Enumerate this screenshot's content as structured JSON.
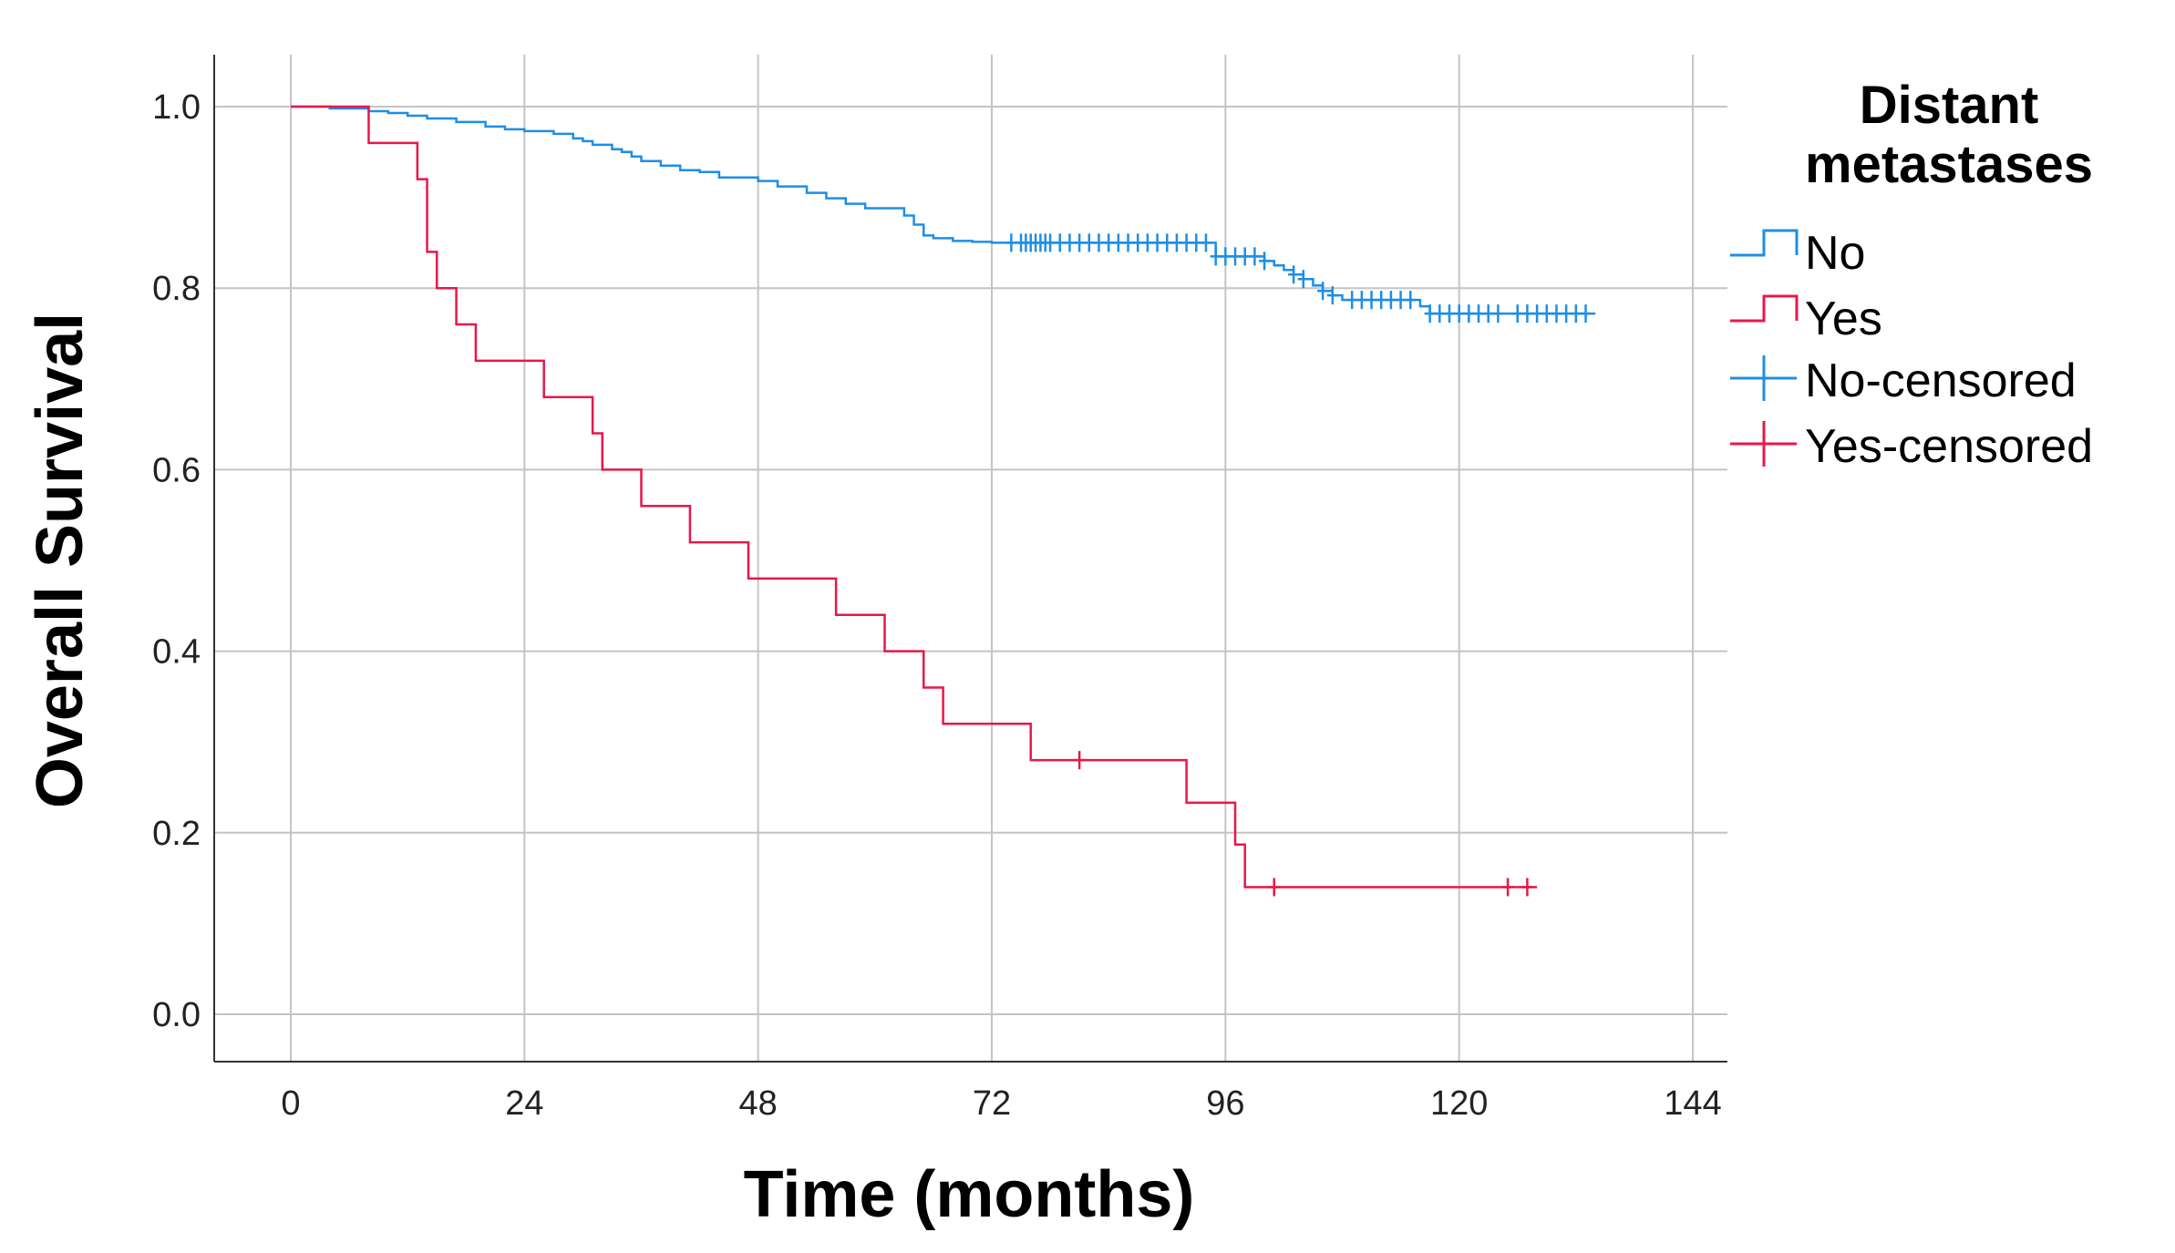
{
  "chart_data": {
    "type": "line",
    "subtype": "kaplan-meier-step",
    "title": "",
    "xlabel": "Time (months)",
    "ylabel": "Overall Survival",
    "xlim": [
      0,
      144
    ],
    "ylim": [
      0,
      1.0
    ],
    "x_ticks": [
      "0",
      "24",
      "48",
      "72",
      "96",
      "120",
      "144"
    ],
    "y_ticks": [
      "0.0",
      "0.2",
      "0.4",
      "0.6",
      "0.8",
      "1.0"
    ],
    "grid": true,
    "legend": {
      "title_lines": [
        "Distant",
        "metastases"
      ],
      "placement": "right",
      "entries": [
        "No",
        "Yes",
        "No-censored",
        "Yes-censored"
      ]
    },
    "series": [
      {
        "name": "No",
        "color": "#1e8ee6",
        "x": [
          0,
          4,
          8,
          10,
          12,
          14,
          17,
          20,
          22,
          24,
          27,
          29,
          30,
          31,
          33,
          34,
          35,
          36,
          38,
          40,
          42,
          44,
          48,
          50,
          53,
          55,
          57,
          59,
          63,
          64,
          65,
          66,
          68,
          70,
          72,
          95,
          100,
          101,
          102,
          103,
          104,
          105,
          106,
          107,
          108,
          116,
          117,
          134
        ],
        "y": [
          1.0,
          0.998,
          0.995,
          0.993,
          0.99,
          0.987,
          0.983,
          0.978,
          0.975,
          0.973,
          0.97,
          0.965,
          0.962,
          0.958,
          0.953,
          0.95,
          0.945,
          0.94,
          0.935,
          0.93,
          0.928,
          0.922,
          0.918,
          0.912,
          0.905,
          0.899,
          0.893,
          0.888,
          0.88,
          0.87,
          0.858,
          0.855,
          0.852,
          0.851,
          0.85,
          0.835,
          0.83,
          0.825,
          0.82,
          0.815,
          0.81,
          0.803,
          0.797,
          0.792,
          0.787,
          0.78,
          0.772,
          0.772
        ],
        "censored": [
          74,
          75,
          75.5,
          76,
          76.5,
          77,
          77.5,
          78,
          79,
          80,
          81,
          82,
          83,
          84,
          85,
          86,
          87,
          88,
          89,
          90,
          91,
          92,
          93,
          94,
          95,
          96,
          97,
          98,
          99,
          100,
          103,
          104,
          106,
          107,
          109,
          110,
          111,
          112,
          113,
          114,
          115,
          117,
          118,
          119,
          120,
          121,
          122,
          123,
          124,
          126,
          127,
          128,
          129,
          130,
          131,
          132,
          133
        ]
      },
      {
        "name": "Yes",
        "color": "#e8174a",
        "x": [
          0,
          8,
          13,
          14,
          15,
          16,
          17,
          19,
          26,
          31,
          32,
          36,
          41,
          47,
          56,
          61,
          65,
          67,
          76,
          92,
          97,
          98,
          128
        ],
        "y": [
          1.0,
          0.96,
          0.92,
          0.84,
          0.8,
          0.8,
          0.76,
          0.72,
          0.68,
          0.64,
          0.6,
          0.56,
          0.52,
          0.48,
          0.44,
          0.4,
          0.36,
          0.32,
          0.28,
          0.233,
          0.187,
          0.14,
          0.14
        ],
        "censored": [
          81,
          101,
          125,
          127
        ]
      }
    ]
  }
}
